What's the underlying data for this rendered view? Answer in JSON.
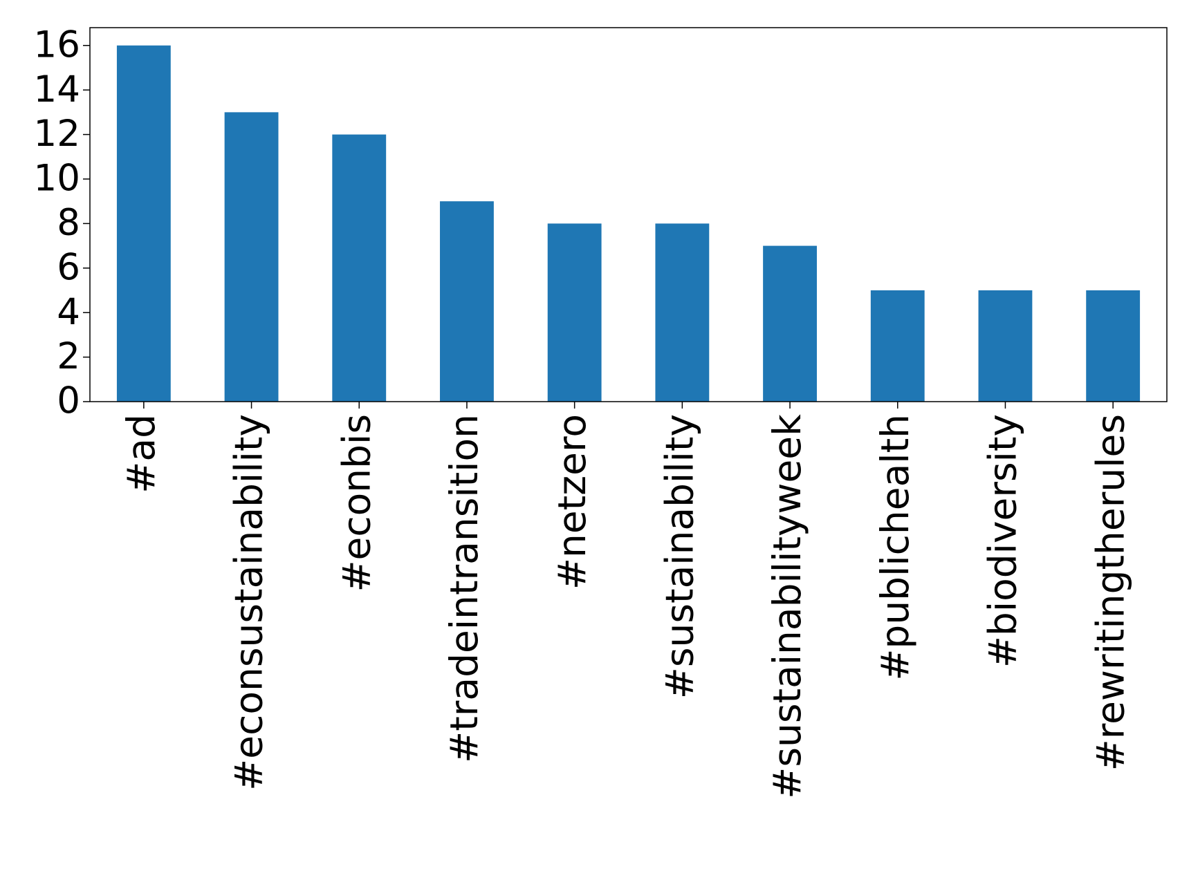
{
  "chart_data": {
    "type": "bar",
    "categories": [
      "#ad",
      "#econsustainability",
      "#econbis",
      "#tradeintransition",
      "#netzero",
      "#sustainability",
      "#sustainabilityweek",
      "#publichealth",
      "#biodiversity",
      "#rewritingtherules"
    ],
    "values": [
      16,
      13,
      12,
      9,
      8,
      8,
      7,
      5,
      5,
      5
    ],
    "color": "#1f77b4",
    "ylim": [
      0,
      16.8
    ],
    "yticks": [
      0,
      2,
      4,
      6,
      8,
      10,
      12,
      14,
      16
    ],
    "grid": false
  }
}
